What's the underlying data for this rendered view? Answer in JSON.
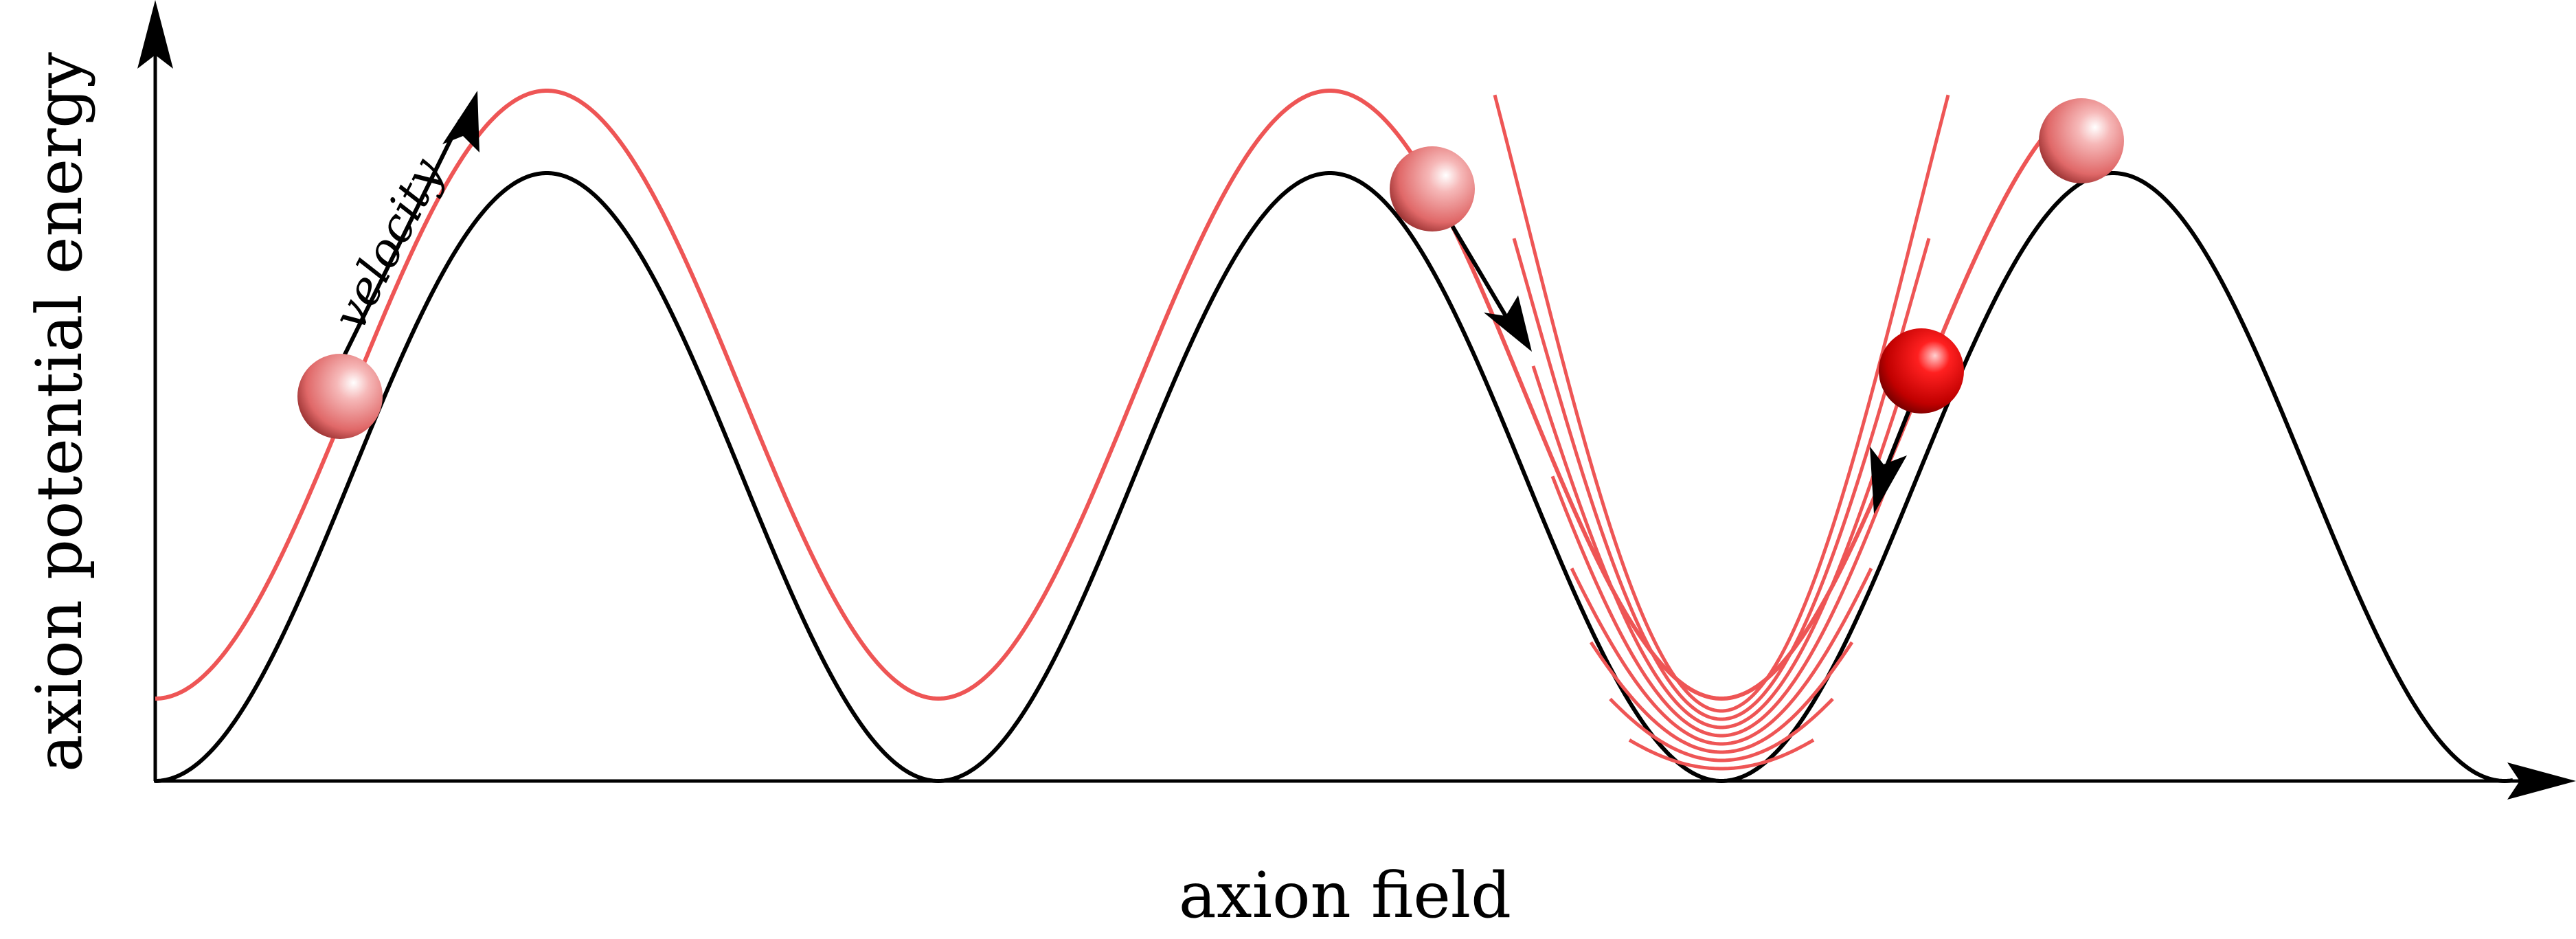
{
  "labels": {
    "x_axis": "axion field",
    "y_axis": "axion potential energy",
    "velocity": "velocity"
  },
  "colors": {
    "potential_curve": "#000000",
    "trajectory": "#ee5555",
    "ball_light": "#ffffff",
    "ball_mid": "#ee7070",
    "ball_dark": "#7a1a1a",
    "ball_bright_mid": "#ff1a1a",
    "ball_bright_dark": "#5a0000"
  },
  "icons": {
    "ball": "sphere",
    "arrow": "arrowhead"
  }
}
